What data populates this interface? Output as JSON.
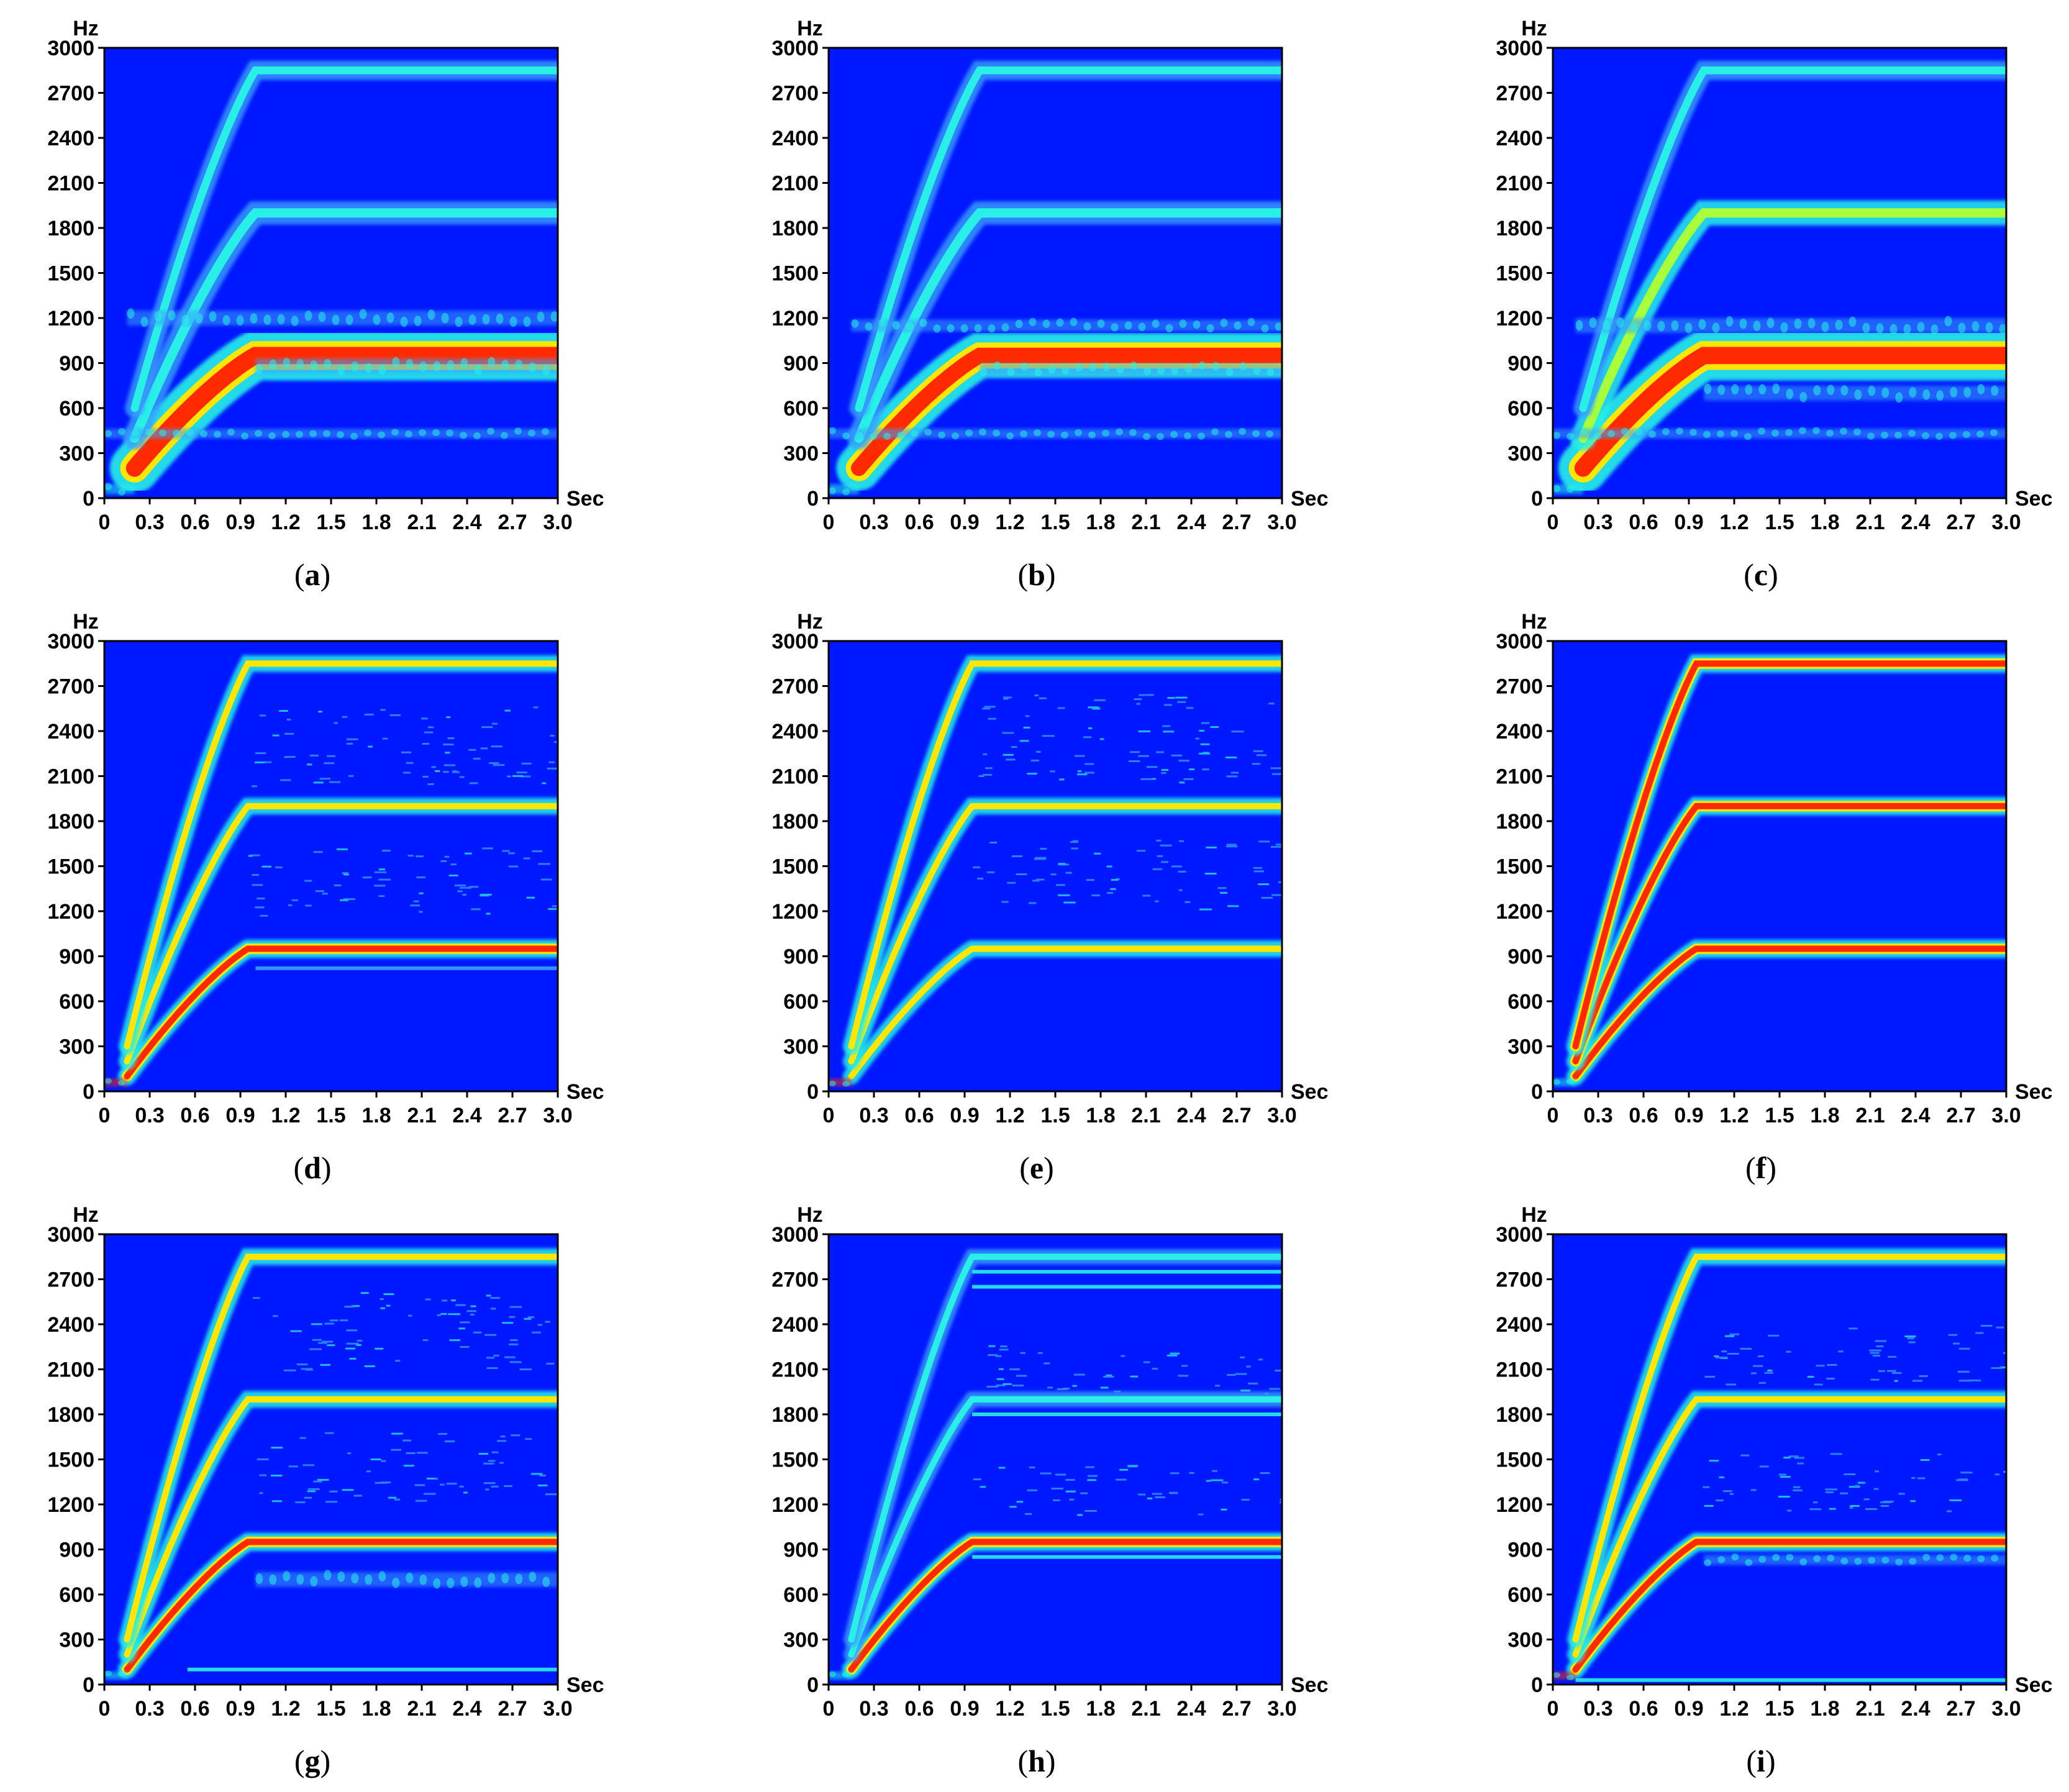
{
  "figure": {
    "colors": {
      "background": "#0018ff",
      "weak": "#3aa0ff",
      "mid": "#28f0e6",
      "strong_mid": "#a8ff3a",
      "yellow": "#ffe600",
      "strong": "#ff2a00"
    }
  },
  "chart_data": [
    {
      "type": "heatmap",
      "panel": "a",
      "xlabel": "Sec",
      "ylabel": "Hz",
      "xlim": [
        0,
        3.0
      ],
      "ylim": [
        0,
        3000
      ],
      "x_ticks": [
        "0",
        "0.3",
        "0.6",
        "0.9",
        "1.2",
        "1.5",
        "1.8",
        "2.1",
        "2.4",
        "2.7",
        "3.0"
      ],
      "y_ticks": [
        "0",
        "300",
        "600",
        "900",
        "1200",
        "1500",
        "1800",
        "2100",
        "2400",
        "2700",
        "3000"
      ],
      "caption": {
        "open": "(",
        "letter": "a",
        "close": ")"
      },
      "components": [
        {
          "name": "fundamental",
          "f_start": 200,
          "f_end": 950,
          "t_start": 0.2,
          "t_end": 1.0,
          "level": "strong",
          "width": 2.2
        },
        {
          "name": "2x",
          "f_start": 400,
          "f_end": 1900,
          "t_start": 0.2,
          "t_end": 1.0,
          "level": "mid",
          "width": 1.2
        },
        {
          "name": "3x",
          "f_start": 600,
          "f_end": 2850,
          "t_start": 0.2,
          "t_end": 1.0,
          "level": "mid",
          "width": 1.0
        },
        {
          "name": "band-1200",
          "f": 1200,
          "t_start": 0.15,
          "t_end": 3.0,
          "level": "weak",
          "width": 1.5
        },
        {
          "name": "band-880",
          "f": 880,
          "t_start": 1.0,
          "t_end": 3.0,
          "level": "weak",
          "width": 1.5
        },
        {
          "name": "band-430",
          "f": 430,
          "t_start": 0.0,
          "t_end": 3.0,
          "level": "weak",
          "width": 1.0
        },
        {
          "name": "low-burst",
          "f": 60,
          "t_start": 0.0,
          "t_end": 0.2,
          "level": "mid",
          "width": 1.0
        }
      ]
    },
    {
      "type": "heatmap",
      "panel": "b",
      "xlabel": "Sec",
      "ylabel": "Hz",
      "xlim": [
        0,
        3.0
      ],
      "ylim": [
        0,
        3000
      ],
      "x_ticks": [
        "0",
        "0.3",
        "0.6",
        "0.9",
        "1.2",
        "1.5",
        "1.8",
        "2.1",
        "2.4",
        "2.7",
        "3.0"
      ],
      "y_ticks": [
        "0",
        "300",
        "600",
        "900",
        "1200",
        "1500",
        "1800",
        "2100",
        "2400",
        "2700",
        "3000"
      ],
      "caption": {
        "open": "(",
        "letter": "b",
        "close": ")"
      },
      "components": [
        {
          "name": "fundamental",
          "f_start": 200,
          "f_end": 950,
          "t_start": 0.2,
          "t_end": 1.0,
          "level": "strong",
          "width": 2.0
        },
        {
          "name": "2x",
          "f_start": 400,
          "f_end": 1900,
          "t_start": 0.2,
          "t_end": 1.0,
          "level": "mid",
          "width": 1.2
        },
        {
          "name": "3x",
          "f_start": 600,
          "f_end": 2850,
          "t_start": 0.2,
          "t_end": 1.0,
          "level": "mid",
          "width": 1.0
        },
        {
          "name": "band-1150",
          "f": 1150,
          "t_start": 0.15,
          "t_end": 3.0,
          "level": "weak",
          "width": 1.2
        },
        {
          "name": "band-860",
          "f": 860,
          "t_start": 1.0,
          "t_end": 3.0,
          "level": "weak",
          "width": 1.2
        },
        {
          "name": "band-430",
          "f": 430,
          "t_start": 0.0,
          "t_end": 3.0,
          "level": "weak",
          "width": 1.0
        },
        {
          "name": "low-burst",
          "f": 60,
          "t_start": 0.0,
          "t_end": 0.2,
          "level": "mid",
          "width": 1.0
        }
      ]
    },
    {
      "type": "heatmap",
      "panel": "c",
      "xlabel": "Sec",
      "ylabel": "Hz",
      "xlim": [
        0,
        3.0
      ],
      "ylim": [
        0,
        3000
      ],
      "x_ticks": [
        "0",
        "0.3",
        "0.6",
        "0.9",
        "1.2",
        "1.5",
        "1.8",
        "2.1",
        "2.4",
        "2.7",
        "3.0"
      ],
      "y_ticks": [
        "0",
        "300",
        "600",
        "900",
        "1200",
        "1500",
        "1800",
        "2100",
        "2400",
        "2700",
        "3000"
      ],
      "caption": {
        "open": "(",
        "letter": "c",
        "close": ")"
      },
      "components": [
        {
          "name": "fundamental",
          "f_start": 200,
          "f_end": 950,
          "t_start": 0.2,
          "t_end": 1.0,
          "level": "strong",
          "width": 2.2
        },
        {
          "name": "2x",
          "f_start": 400,
          "f_end": 1900,
          "t_start": 0.2,
          "t_end": 1.0,
          "level": "strong_mid",
          "width": 1.2
        },
        {
          "name": "3x",
          "f_start": 600,
          "f_end": 2850,
          "t_start": 0.2,
          "t_end": 1.0,
          "level": "mid",
          "width": 1.0
        },
        {
          "name": "band-1150",
          "f": 1150,
          "t_start": 0.15,
          "t_end": 3.0,
          "level": "weak",
          "width": 1.5
        },
        {
          "name": "band-700",
          "f": 700,
          "t_start": 1.0,
          "t_end": 3.0,
          "level": "weak",
          "width": 1.5
        },
        {
          "name": "band-430",
          "f": 430,
          "t_start": 0.0,
          "t_end": 3.0,
          "level": "weak",
          "width": 1.0
        },
        {
          "name": "low-burst",
          "f": 60,
          "t_start": 0.0,
          "t_end": 0.2,
          "level": "mid",
          "width": 1.0
        }
      ]
    },
    {
      "type": "heatmap",
      "panel": "d",
      "xlabel": "Sec",
      "ylabel": "Hz",
      "xlim": [
        0,
        3.0
      ],
      "ylim": [
        0,
        3000
      ],
      "x_ticks": [
        "0",
        "0.3",
        "0.6",
        "0.9",
        "1.2",
        "1.5",
        "1.8",
        "2.1",
        "2.4",
        "2.7",
        "3.0"
      ],
      "y_ticks": [
        "0",
        "300",
        "600",
        "900",
        "1200",
        "1500",
        "1800",
        "2100",
        "2400",
        "2700",
        "3000"
      ],
      "caption": {
        "open": "(",
        "letter": "d",
        "close": ")"
      },
      "components": [
        {
          "name": "fundamental",
          "f_start": 100,
          "f_end": 950,
          "t_start": 0.15,
          "t_end": 0.95,
          "level": "strong",
          "width": 0.8
        },
        {
          "name": "2x",
          "f_start": 200,
          "f_end": 1900,
          "t_start": 0.15,
          "t_end": 0.95,
          "level": "yellow",
          "width": 0.8
        },
        {
          "name": "3x",
          "f_start": 300,
          "f_end": 2850,
          "t_start": 0.15,
          "t_end": 0.95,
          "level": "yellow",
          "width": 0.8
        },
        {
          "name": "texture-upper",
          "f": 2300,
          "t_start": 0.95,
          "t_end": 3.0,
          "level": "weak",
          "width": 8.0
        },
        {
          "name": "texture-middle",
          "f": 1400,
          "t_start": 0.95,
          "t_end": 3.0,
          "level": "weak",
          "width": 7.0
        },
        {
          "name": "band-820",
          "f": 820,
          "t_start": 1.0,
          "t_end": 3.0,
          "level": "weak",
          "width": 0.5
        },
        {
          "name": "low-burst",
          "f": 60,
          "t_start": 0.0,
          "t_end": 0.15,
          "level": "strong",
          "width": 0.8
        }
      ]
    },
    {
      "type": "heatmap",
      "panel": "e",
      "xlabel": "Sec",
      "ylabel": "Hz",
      "xlim": [
        0,
        3.0
      ],
      "ylim": [
        0,
        3000
      ],
      "x_ticks": [
        "0",
        "0.3",
        "0.6",
        "0.9",
        "1.2",
        "1.5",
        "1.8",
        "2.1",
        "2.4",
        "2.7",
        "3.0"
      ],
      "y_ticks": [
        "0",
        "300",
        "600",
        "900",
        "1200",
        "1500",
        "1800",
        "2100",
        "2400",
        "2700",
        "3000"
      ],
      "caption": {
        "open": "(",
        "letter": "e",
        "close": ")"
      },
      "components": [
        {
          "name": "fundamental",
          "f_start": 100,
          "f_end": 950,
          "t_start": 0.15,
          "t_end": 0.95,
          "level": "yellow",
          "width": 0.8
        },
        {
          "name": "2x",
          "f_start": 200,
          "f_end": 1900,
          "t_start": 0.15,
          "t_end": 0.95,
          "level": "yellow",
          "width": 0.8
        },
        {
          "name": "3x",
          "f_start": 300,
          "f_end": 2850,
          "t_start": 0.15,
          "t_end": 0.95,
          "level": "yellow",
          "width": 0.8
        },
        {
          "name": "texture-upper",
          "f": 2350,
          "t_start": 0.95,
          "t_end": 3.0,
          "level": "weak",
          "width": 9.0
        },
        {
          "name": "texture-middle",
          "f": 1450,
          "t_start": 0.95,
          "t_end": 3.0,
          "level": "weak",
          "width": 7.0
        },
        {
          "name": "low-burst",
          "f": 60,
          "t_start": 0.0,
          "t_end": 0.15,
          "level": "strong",
          "width": 0.8
        }
      ]
    },
    {
      "type": "heatmap",
      "panel": "f",
      "xlabel": "Sec",
      "ylabel": "Hz",
      "xlim": [
        0,
        3.0
      ],
      "ylim": [
        0,
        3000
      ],
      "x_ticks": [
        "0",
        "0.3",
        "0.6",
        "0.9",
        "1.2",
        "1.5",
        "1.8",
        "2.1",
        "2.4",
        "2.7",
        "3.0"
      ],
      "y_ticks": [
        "0",
        "300",
        "600",
        "900",
        "1200",
        "1500",
        "1800",
        "2100",
        "2400",
        "2700",
        "3000"
      ],
      "caption": {
        "open": "(",
        "letter": "f",
        "close": ")"
      },
      "components": [
        {
          "name": "fundamental",
          "f_start": 100,
          "f_end": 950,
          "t_start": 0.15,
          "t_end": 0.95,
          "level": "strong",
          "width": 0.8
        },
        {
          "name": "2x",
          "f_start": 200,
          "f_end": 1900,
          "t_start": 0.15,
          "t_end": 0.95,
          "level": "strong",
          "width": 0.8
        },
        {
          "name": "3x",
          "f_start": 300,
          "f_end": 2850,
          "t_start": 0.15,
          "t_end": 0.95,
          "level": "strong",
          "width": 0.8
        },
        {
          "name": "low-burst",
          "f": 60,
          "t_start": 0.0,
          "t_end": 0.15,
          "level": "mid",
          "width": 0.8
        }
      ]
    },
    {
      "type": "heatmap",
      "panel": "g",
      "xlabel": "Sec",
      "ylabel": "Hz",
      "xlim": [
        0,
        3.0
      ],
      "ylim": [
        0,
        3000
      ],
      "x_ticks": [
        "0",
        "0.3",
        "0.6",
        "0.9",
        "1.2",
        "1.5",
        "1.8",
        "2.1",
        "2.4",
        "2.7",
        "3.0"
      ],
      "y_ticks": [
        "0",
        "300",
        "600",
        "900",
        "1200",
        "1500",
        "1800",
        "2100",
        "2400",
        "2700",
        "3000"
      ],
      "caption": {
        "open": "(",
        "letter": "g",
        "close": ")"
      },
      "components": [
        {
          "name": "fundamental",
          "f_start": 100,
          "f_end": 950,
          "t_start": 0.15,
          "t_end": 0.95,
          "level": "strong",
          "width": 0.8
        },
        {
          "name": "2x",
          "f_start": 200,
          "f_end": 1900,
          "t_start": 0.15,
          "t_end": 0.95,
          "level": "yellow",
          "width": 0.8
        },
        {
          "name": "3x",
          "f_start": 300,
          "f_end": 2850,
          "t_start": 0.15,
          "t_end": 0.95,
          "level": "yellow",
          "width": 0.8
        },
        {
          "name": "texture-upper",
          "f": 2350,
          "t_start": 0.95,
          "t_end": 3.0,
          "level": "weak",
          "width": 8.0
        },
        {
          "name": "texture-middle",
          "f": 1450,
          "t_start": 0.95,
          "t_end": 3.0,
          "level": "weak",
          "width": 7.0
        },
        {
          "name": "band-700",
          "f": 700,
          "t_start": 1.0,
          "t_end": 3.0,
          "level": "weak",
          "width": 1.5
        },
        {
          "name": "line-100",
          "f": 100,
          "t_start": 0.55,
          "t_end": 3.0,
          "level": "mid",
          "width": 0.5
        },
        {
          "name": "low-burst",
          "f": 60,
          "t_start": 0.0,
          "t_end": 0.15,
          "level": "mid",
          "width": 0.8
        }
      ]
    },
    {
      "type": "heatmap",
      "panel": "h",
      "xlabel": "Sec",
      "ylabel": "Hz",
      "xlim": [
        0,
        3.0
      ],
      "ylim": [
        0,
        3000
      ],
      "x_ticks": [
        "0",
        "0.3",
        "0.6",
        "0.9",
        "1.2",
        "1.5",
        "1.8",
        "2.1",
        "2.4",
        "2.7",
        "3.0"
      ],
      "y_ticks": [
        "0",
        "300",
        "600",
        "900",
        "1200",
        "1500",
        "1800",
        "2100",
        "2400",
        "2700",
        "3000"
      ],
      "caption": {
        "open": "(",
        "letter": "h",
        "close": ")"
      },
      "components": [
        {
          "name": "fundamental",
          "f_start": 100,
          "f_end": 950,
          "t_start": 0.15,
          "t_end": 0.95,
          "level": "strong",
          "width": 0.8
        },
        {
          "name": "2x",
          "f_start": 200,
          "f_end": 1900,
          "t_start": 0.15,
          "t_end": 0.95,
          "level": "mid",
          "width": 0.8
        },
        {
          "name": "3x",
          "f_start": 300,
          "f_end": 2850,
          "t_start": 0.15,
          "t_end": 0.95,
          "level": "mid",
          "width": 0.8
        },
        {
          "name": "line-2750",
          "f": 2750,
          "t_start": 0.95,
          "t_end": 3.0,
          "level": "mid",
          "width": 0.5
        },
        {
          "name": "line-2650",
          "f": 2650,
          "t_start": 0.95,
          "t_end": 3.0,
          "level": "mid",
          "width": 0.5
        },
        {
          "name": "line-1800",
          "f": 1800,
          "t_start": 0.95,
          "t_end": 3.0,
          "level": "mid",
          "width": 0.5
        },
        {
          "name": "line-850",
          "f": 850,
          "t_start": 0.95,
          "t_end": 3.0,
          "level": "mid",
          "width": 0.5
        },
        {
          "name": "texture-upper",
          "f": 2100,
          "t_start": 0.95,
          "t_end": 3.0,
          "level": "weak",
          "width": 5.0
        },
        {
          "name": "texture-middle",
          "f": 1300,
          "t_start": 0.95,
          "t_end": 3.0,
          "level": "weak",
          "width": 5.0
        },
        {
          "name": "low-burst",
          "f": 60,
          "t_start": 0.0,
          "t_end": 0.15,
          "level": "mid",
          "width": 0.8
        }
      ]
    },
    {
      "type": "heatmap",
      "panel": "i",
      "xlabel": "Sec",
      "ylabel": "Hz",
      "xlim": [
        0,
        3.0
      ],
      "ylim": [
        0,
        3000
      ],
      "x_ticks": [
        "0",
        "0.3",
        "0.6",
        "0.9",
        "1.2",
        "1.5",
        "1.8",
        "2.1",
        "2.4",
        "2.7",
        "3.0"
      ],
      "y_ticks": [
        "0",
        "300",
        "600",
        "900",
        "1200",
        "1500",
        "1800",
        "2100",
        "2400",
        "2700",
        "3000"
      ],
      "caption": {
        "open": "(",
        "letter": "i",
        "close": ")"
      },
      "components": [
        {
          "name": "fundamental",
          "f_start": 100,
          "f_end": 950,
          "t_start": 0.15,
          "t_end": 0.95,
          "level": "strong",
          "width": 0.8
        },
        {
          "name": "2x",
          "f_start": 200,
          "f_end": 1900,
          "t_start": 0.15,
          "t_end": 0.95,
          "level": "yellow",
          "width": 0.8
        },
        {
          "name": "3x",
          "f_start": 300,
          "f_end": 2850,
          "t_start": 0.15,
          "t_end": 0.95,
          "level": "yellow",
          "width": 0.8
        },
        {
          "name": "texture-upper",
          "f": 2200,
          "t_start": 0.95,
          "t_end": 3.0,
          "level": "weak",
          "width": 6.0
        },
        {
          "name": "texture-middle",
          "f": 1350,
          "t_start": 0.95,
          "t_end": 3.0,
          "level": "weak",
          "width": 6.0
        },
        {
          "name": "band-830",
          "f": 830,
          "t_start": 1.0,
          "t_end": 3.0,
          "level": "weak",
          "width": 1.0
        },
        {
          "name": "line-30",
          "f": 30,
          "t_start": 0.15,
          "t_end": 3.0,
          "level": "mid",
          "width": 0.4
        },
        {
          "name": "low-burst",
          "f": 60,
          "t_start": 0.0,
          "t_end": 0.15,
          "level": "strong",
          "width": 0.8
        }
      ]
    }
  ]
}
